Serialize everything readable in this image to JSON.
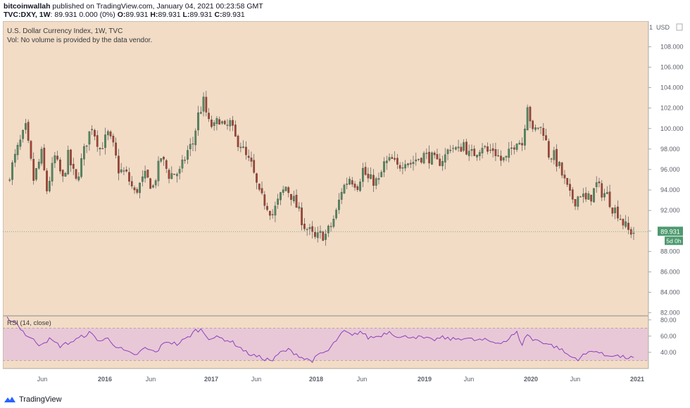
{
  "header": {
    "author": "bitcoinwallah",
    "published": " published on TradingView.com, January 04, 2021 00:23:58 GMT",
    "symbol": "TVC:DXY, 1W",
    "quote": "89.931 0.000 (0%)",
    "open_label": "O:",
    "open": "89.931",
    "high_label": "H:",
    "high": "89.931",
    "low_label": "L:",
    "low": "89.931",
    "close_label": "C:",
    "close": "89.931"
  },
  "footer": {
    "brand": "TradingView"
  },
  "colors": {
    "background": "#f2dcc6",
    "rsi_band": "#e8c8d6",
    "up": "#4e8a5e",
    "down": "#a8402f",
    "rsi_line": "#8e3fbf",
    "price_label_bg": "#4e9a6f"
  },
  "chart_data": {
    "type": "candlestick",
    "title": "U.S. Dollar Currency Index, 1W, TVC",
    "volume_note": "Vol: No volume is provided by the data vendor.",
    "price_axis_unit": "USD",
    "y_ticks": [
      "82.000",
      "84.000",
      "86.000",
      "88.000",
      "90.000",
      "92.000",
      "94.000",
      "96.000",
      "98.000",
      "100.000",
      "102.000",
      "104.000",
      "106.000",
      "108.000"
    ],
    "ylim": [
      81.7,
      110.5
    ],
    "x_ticks": [
      "Jun",
      "2016",
      "Jun",
      "2017",
      "Jun",
      "2018",
      "Jun",
      "2019",
      "Jun",
      "2020",
      "Jun",
      "2021"
    ],
    "last_price": "89.931",
    "countdown": "5d 0h",
    "anchors": [
      [
        0,
        94.8
      ],
      [
        4,
        98.0
      ],
      [
        7,
        100.0
      ],
      [
        10,
        95.0
      ],
      [
        13,
        97.5
      ],
      [
        15,
        94.0
      ],
      [
        18,
        97.2
      ],
      [
        21,
        95.0
      ],
      [
        23,
        97.3
      ],
      [
        26,
        94.8
      ],
      [
        30,
        98.8
      ],
      [
        32,
        100.3
      ],
      [
        35,
        98.0
      ],
      [
        38,
        99.4
      ],
      [
        40,
        98.2
      ],
      [
        42,
        96.0
      ],
      [
        45,
        95.5
      ],
      [
        48,
        93.7
      ],
      [
        52,
        95.3
      ],
      [
        55,
        94.3
      ],
      [
        58,
        97.2
      ],
      [
        61,
        95.5
      ],
      [
        65,
        95.7
      ],
      [
        68,
        97.8
      ],
      [
        70,
        98.6
      ],
      [
        72,
        101.3
      ],
      [
        74,
        102.6
      ],
      [
        76,
        100.5
      ],
      [
        78,
        100.1
      ],
      [
        80,
        101.0
      ],
      [
        82,
        99.9
      ],
      [
        84,
        100.5
      ],
      [
        86,
        99.0
      ],
      [
        88,
        98.5
      ],
      [
        90,
        97.2
      ],
      [
        92,
        96.4
      ],
      [
        95,
        93.5
      ],
      [
        98,
        92.5
      ],
      [
        100,
        91.6
      ],
      [
        103,
        93.4
      ],
      [
        105,
        94.3
      ],
      [
        107,
        93.5
      ],
      [
        109,
        92.4
      ],
      [
        112,
        90.5
      ],
      [
        114,
        89.9
      ],
      [
        116,
        89.2
      ],
      [
        118,
        89.6
      ],
      [
        120,
        89.6
      ],
      [
        122,
        90.5
      ],
      [
        124,
        91.8
      ],
      [
        126,
        94.0
      ],
      [
        129,
        95.2
      ],
      [
        132,
        94.5
      ],
      [
        134,
        96.0
      ],
      [
        136,
        95.0
      ],
      [
        140,
        94.8
      ],
      [
        142,
        96.5
      ],
      [
        145,
        96.9
      ],
      [
        147,
        96.2
      ],
      [
        150,
        97.0
      ],
      [
        152,
        96.6
      ],
      [
        154,
        97.0
      ],
      [
        157,
        97.4
      ],
      [
        160,
        97.1
      ],
      [
        162,
        96.6
      ],
      [
        165,
        97.3
      ],
      [
        167,
        98.3
      ],
      [
        170,
        97.8
      ],
      [
        172,
        98.6
      ],
      [
        174,
        97.4
      ],
      [
        176,
        97.6
      ],
      [
        179,
        98.4
      ],
      [
        181,
        97.7
      ],
      [
        183,
        98.0
      ],
      [
        186,
        96.9
      ],
      [
        188,
        97.0
      ],
      [
        190,
        98.0
      ],
      [
        192,
        99.0
      ],
      [
        194,
        98.5
      ],
      [
        196,
        102.5
      ],
      [
        198,
        99.5
      ],
      [
        200,
        100.2
      ],
      [
        202,
        99.8
      ],
      [
        204,
        97.5
      ],
      [
        206,
        97.3
      ],
      [
        208,
        96.2
      ],
      [
        210,
        94.8
      ],
      [
        212,
        93.4
      ],
      [
        214,
        93.0
      ],
      [
        216,
        93.7
      ],
      [
        218,
        92.9
      ],
      [
        220,
        93.4
      ],
      [
        222,
        94.5
      ],
      [
        224,
        93.8
      ],
      [
        226,
        93.5
      ],
      [
        228,
        92.3
      ],
      [
        230,
        91.8
      ],
      [
        232,
        90.8
      ],
      [
        234,
        90.0
      ],
      [
        236,
        89.9
      ]
    ],
    "rsi": {
      "label": "RSI (14, close)",
      "y_ticks": [
        "40.00",
        "60.00",
        "80.00"
      ],
      "ylim": [
        20,
        85
      ],
      "band": [
        30,
        70
      ],
      "anchors": [
        [
          0,
          82
        ],
        [
          3,
          78
        ],
        [
          7,
          62
        ],
        [
          12,
          50
        ],
        [
          16,
          56
        ],
        [
          20,
          48
        ],
        [
          25,
          54
        ],
        [
          31,
          64
        ],
        [
          35,
          54
        ],
        [
          38,
          57
        ],
        [
          41,
          48
        ],
        [
          44,
          42
        ],
        [
          48,
          36
        ],
        [
          52,
          45
        ],
        [
          56,
          40
        ],
        [
          60,
          54
        ],
        [
          64,
          50
        ],
        [
          68,
          58
        ],
        [
          71,
          67
        ],
        [
          73,
          68
        ],
        [
          76,
          58
        ],
        [
          80,
          58
        ],
        [
          84,
          54
        ],
        [
          87,
          48
        ],
        [
          90,
          40
        ],
        [
          93,
          36
        ],
        [
          97,
          32
        ],
        [
          100,
          30
        ],
        [
          103,
          40
        ],
        [
          106,
          43
        ],
        [
          109,
          38
        ],
        [
          112,
          32
        ],
        [
          115,
          30
        ],
        [
          118,
          38
        ],
        [
          121,
          42
        ],
        [
          124,
          55
        ],
        [
          127,
          66
        ],
        [
          130,
          60
        ],
        [
          133,
          66
        ],
        [
          136,
          58
        ],
        [
          140,
          60
        ],
        [
          144,
          66
        ],
        [
          148,
          58
        ],
        [
          152,
          60
        ],
        [
          156,
          58
        ],
        [
          160,
          55
        ],
        [
          164,
          58
        ],
        [
          168,
          56
        ],
        [
          172,
          58
        ],
        [
          176,
          55
        ],
        [
          180,
          55
        ],
        [
          184,
          52
        ],
        [
          188,
          54
        ],
        [
          190,
          60
        ],
        [
          192,
          64
        ],
        [
          194,
          50
        ],
        [
          196,
          63
        ],
        [
          198,
          55
        ],
        [
          200,
          55
        ],
        [
          204,
          50
        ],
        [
          208,
          45
        ],
        [
          212,
          35
        ],
        [
          215,
          32
        ],
        [
          218,
          38
        ],
        [
          221,
          43
        ],
        [
          225,
          36
        ],
        [
          228,
          37
        ],
        [
          232,
          34
        ],
        [
          236,
          33
        ]
      ]
    }
  }
}
